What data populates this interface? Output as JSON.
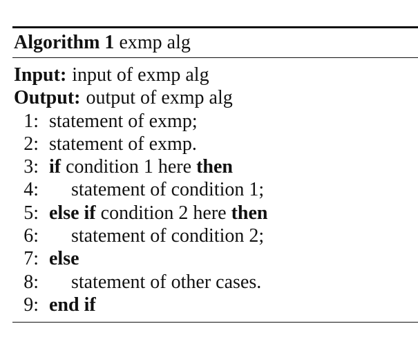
{
  "algorithm": {
    "label": "Algorithm 1",
    "name": "exmp alg",
    "input_label": "Input:",
    "input_text": "input of exmp alg",
    "output_label": "Output:",
    "output_text": "output of exmp alg",
    "lines": [
      {
        "num": "1:",
        "text": "statement of exmp;"
      },
      {
        "num": "2:",
        "text": "statement of exmp."
      },
      {
        "num": "3:",
        "kw1": "if",
        "text": "condition 1 here",
        "kw2": "then"
      },
      {
        "num": "4:",
        "text": "statement of condition 1;"
      },
      {
        "num": "5:",
        "kw1": "else if",
        "text": "condition 2 here",
        "kw2": "then"
      },
      {
        "num": "6:",
        "text": "statement of condition 2;"
      },
      {
        "num": "7:",
        "kw1": "else"
      },
      {
        "num": "8:",
        "text": "statement of other cases."
      },
      {
        "num": "9:",
        "kw1": "end if"
      }
    ]
  }
}
